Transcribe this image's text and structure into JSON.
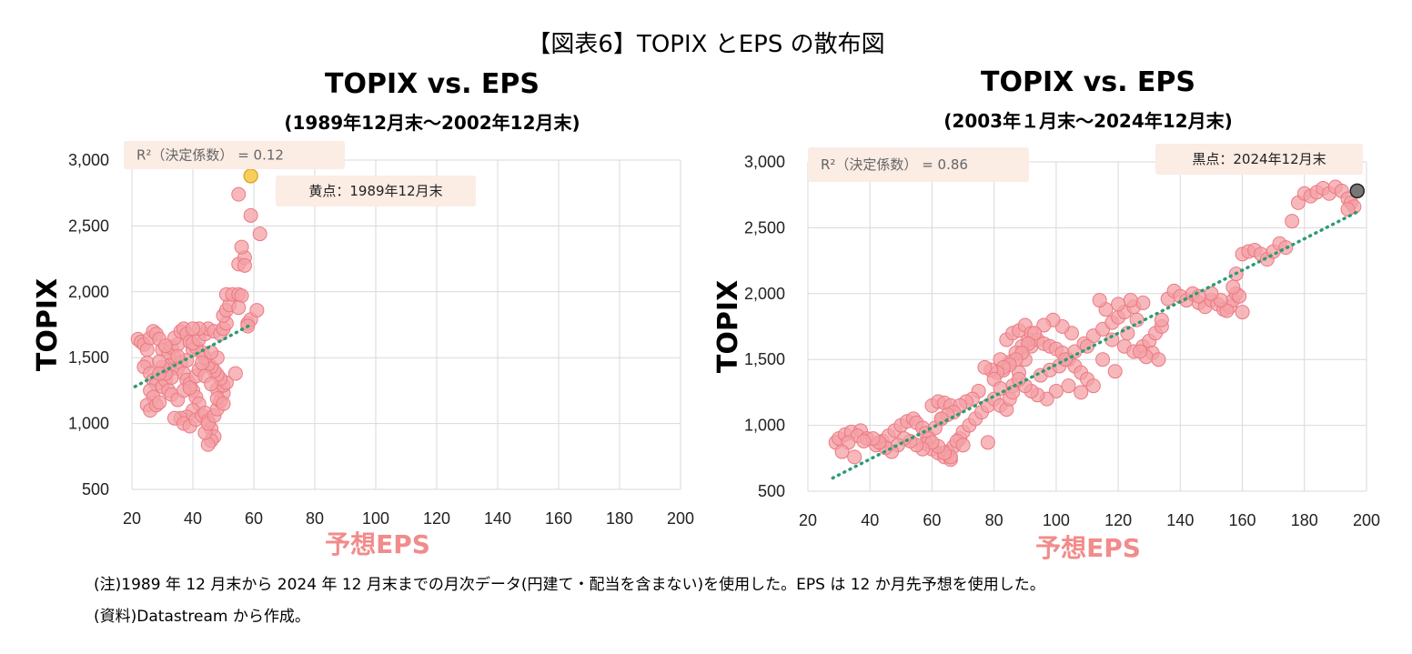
{
  "figure_title": "【図表6】TOPIX とEPS の散布図",
  "notes": [
    "(注)1989 年 12 月末から 2024 年 12 月末までの月次データ(円建て・配当を含まない)を使用した。EPS は 12 か月先予想を使用した。",
    "(資料)Datastream から作成。"
  ],
  "colors": {
    "points": "#f4a0a6",
    "points_edge": "#ea7a82",
    "trend": "#2e9b72",
    "highlight1": "#f6cf5a",
    "highlight2": "#777777",
    "callout_bg": "#fbece4"
  },
  "chart_data": [
    {
      "type": "scatter",
      "title": "TOPIX vs. EPS",
      "subtitle": "(1989年12月末～2002年12月末)",
      "xlabel": "予想EPS",
      "ylabel": "TOPIX",
      "xlim": [
        20,
        200
      ],
      "ylim": [
        500,
        3000
      ],
      "xticks": [
        "20",
        "40",
        "60",
        "80",
        "100",
        "120",
        "140",
        "160",
        "180",
        "200"
      ],
      "yticks": [
        "500",
        "1,000",
        "1,500",
        "2,000",
        "2,500",
        "3,000"
      ],
      "grid": true,
      "r2_label": "R²（決定係数） = 0.12",
      "highlight_label": "黄点：1989年12月末",
      "highlight": {
        "x": 59,
        "y": 2880
      },
      "trendline": {
        "x": [
          21,
          59
        ],
        "y": [
          1280,
          1750
        ]
      },
      "points": [
        [
          22,
          1640
        ],
        [
          23,
          1620
        ],
        [
          24,
          1600
        ],
        [
          25,
          1560
        ],
        [
          26,
          1650
        ],
        [
          27,
          1700
        ],
        [
          28,
          1680
        ],
        [
          29,
          1640
        ],
        [
          30,
          1560
        ],
        [
          25,
          1460
        ],
        [
          24,
          1430
        ],
        [
          26,
          1380
        ],
        [
          27,
          1330
        ],
        [
          28,
          1300
        ],
        [
          26,
          1250
        ],
        [
          27,
          1200
        ],
        [
          25,
          1140
        ],
        [
          26,
          1100
        ],
        [
          28,
          1140
        ],
        [
          29,
          1160
        ],
        [
          30,
          1280
        ],
        [
          31,
          1330
        ],
        [
          32,
          1400
        ],
        [
          33,
          1450
        ],
        [
          34,
          1500
        ],
        [
          32,
          1540
        ],
        [
          33,
          1580
        ],
        [
          35,
          1600
        ],
        [
          34,
          1650
        ],
        [
          36,
          1700
        ],
        [
          37,
          1720
        ],
        [
          38,
          1680
        ],
        [
          39,
          1620
        ],
        [
          40,
          1560
        ],
        [
          36,
          1460
        ],
        [
          35,
          1420
        ],
        [
          37,
          1380
        ],
        [
          38,
          1330
        ],
        [
          39,
          1300
        ],
        [
          40,
          1250
        ],
        [
          41,
          1200
        ],
        [
          42,
          1150
        ],
        [
          40,
          1100
        ],
        [
          38,
          1050
        ],
        [
          36,
          1040
        ],
        [
          34,
          1040
        ],
        [
          37,
          1000
        ],
        [
          39,
          980
        ],
        [
          41,
          1030
        ],
        [
          43,
          1060
        ],
        [
          44,
          1080
        ],
        [
          45,
          1020
        ],
        [
          46,
          960
        ],
        [
          47,
          900
        ],
        [
          46,
          870
        ],
        [
          45,
          840
        ],
        [
          44,
          930
        ],
        [
          45,
          1000
        ],
        [
          47,
          1060
        ],
        [
          48,
          1110
        ],
        [
          49,
          1170
        ],
        [
          50,
          1230
        ],
        [
          48,
          1260
        ],
        [
          50,
          1290
        ],
        [
          51,
          1310
        ],
        [
          49,
          1340
        ],
        [
          48,
          1370
        ],
        [
          47,
          1400
        ],
        [
          46,
          1430
        ],
        [
          45,
          1450
        ],
        [
          44,
          1500
        ],
        [
          43,
          1540
        ],
        [
          41,
          1580
        ],
        [
          40,
          1610
        ],
        [
          42,
          1640
        ],
        [
          44,
          1680
        ],
        [
          45,
          1720
        ],
        [
          47,
          1700
        ],
        [
          49,
          1680
        ],
        [
          50,
          1720
        ],
        [
          51,
          1760
        ],
        [
          50,
          1820
        ],
        [
          51,
          1860
        ],
        [
          52,
          1900
        ],
        [
          51,
          1980
        ],
        [
          53,
          1980
        ],
        [
          55,
          1980
        ],
        [
          56,
          1970
        ],
        [
          55,
          1880
        ],
        [
          58,
          1760
        ],
        [
          59,
          1790
        ],
        [
          58,
          1740
        ],
        [
          61,
          1860
        ],
        [
          54,
          1380
        ],
        [
          55,
          2210
        ],
        [
          57,
          2260
        ],
        [
          56,
          2340
        ],
        [
          57,
          2200
        ],
        [
          59,
          2580
        ],
        [
          62,
          2440
        ],
        [
          55,
          2740
        ],
        [
          33,
          1350
        ],
        [
          31,
          1380
        ],
        [
          30,
          1430
        ],
        [
          29,
          1470
        ],
        [
          32,
          1250
        ],
        [
          33,
          1220
        ],
        [
          35,
          1180
        ],
        [
          37,
          1250
        ],
        [
          39,
          1270
        ],
        [
          41,
          1360
        ],
        [
          42,
          1410
        ],
        [
          43,
          1460
        ],
        [
          44,
          1360
        ],
        [
          46,
          1300
        ],
        [
          48,
          1190
        ],
        [
          50,
          1150
        ],
        [
          48,
          1500
        ],
        [
          46,
          1540
        ],
        [
          42,
          1720
        ],
        [
          40,
          1720
        ],
        [
          38,
          1480
        ],
        [
          35,
          1510
        ],
        [
          31,
          1590
        ],
        [
          29,
          1380
        ]
      ]
    },
    {
      "type": "scatter",
      "title": "TOPIX vs. EPS",
      "subtitle": "(2003年１月末～2024年12月末)",
      "xlabel": "予想EPS",
      "ylabel": "TOPIX",
      "xlim": [
        20,
        200
      ],
      "ylim": [
        500,
        3000
      ],
      "xticks": [
        "20",
        "40",
        "60",
        "80",
        "100",
        "120",
        "140",
        "160",
        "180",
        "200"
      ],
      "yticks": [
        "500",
        "1,000",
        "1,500",
        "2,000",
        "2,500",
        "3,000"
      ],
      "grid": true,
      "r2_label": "R²（決定係数） = 0.86",
      "highlight_label": "黒点：2024年12月末",
      "highlight": {
        "x": 197,
        "y": 2780
      },
      "trendline": {
        "x": [
          28,
          197
        ],
        "y": [
          600,
          2620
        ]
      },
      "points": [
        [
          29,
          870
        ],
        [
          30,
          900
        ],
        [
          32,
          930
        ],
        [
          34,
          950
        ],
        [
          37,
          960
        ],
        [
          36,
          920
        ],
        [
          33,
          870
        ],
        [
          31,
          800
        ],
        [
          35,
          760
        ],
        [
          39,
          900
        ],
        [
          42,
          850
        ],
        [
          44,
          880
        ],
        [
          46,
          920
        ],
        [
          48,
          960
        ],
        [
          50,
          1000
        ],
        [
          52,
          1030
        ],
        [
          54,
          1050
        ],
        [
          55,
          1020
        ],
        [
          57,
          980
        ],
        [
          58,
          940
        ],
        [
          60,
          1150
        ],
        [
          62,
          1180
        ],
        [
          64,
          1170
        ],
        [
          66,
          1150
        ],
        [
          63,
          1050
        ],
        [
          61,
          980
        ],
        [
          59,
          900
        ],
        [
          58,
          860
        ],
        [
          60,
          820
        ],
        [
          62,
          790
        ],
        [
          64,
          760
        ],
        [
          66,
          740
        ],
        [
          65,
          800
        ],
        [
          67,
          840
        ],
        [
          69,
          900
        ],
        [
          70,
          950
        ],
        [
          72,
          1000
        ],
        [
          74,
          1050
        ],
        [
          76,
          1100
        ],
        [
          78,
          1150
        ],
        [
          80,
          1200
        ],
        [
          82,
          1150
        ],
        [
          84,
          1120
        ],
        [
          85,
          1200
        ],
        [
          86,
          1300
        ],
        [
          88,
          1400
        ],
        [
          90,
          1500
        ],
        [
          92,
          1600
        ],
        [
          91,
          1650
        ],
        [
          89,
          1600
        ],
        [
          87,
          1550
        ],
        [
          85,
          1480
        ],
        [
          83,
          1420
        ],
        [
          82,
          1500
        ],
        [
          84,
          1650
        ],
        [
          86,
          1700
        ],
        [
          88,
          1720
        ],
        [
          90,
          1760
        ],
        [
          92,
          1700
        ],
        [
          94,
          1650
        ],
        [
          96,
          1620
        ],
        [
          98,
          1600
        ],
        [
          100,
          1580
        ],
        [
          102,
          1550
        ],
        [
          104,
          1500
        ],
        [
          106,
          1450
        ],
        [
          108,
          1400
        ],
        [
          110,
          1350
        ],
        [
          112,
          1300
        ],
        [
          108,
          1250
        ],
        [
          104,
          1300
        ],
        [
          100,
          1260
        ],
        [
          97,
          1200
        ],
        [
          94,
          1230
        ],
        [
          92,
          1260
        ],
        [
          90,
          1300
        ],
        [
          88,
          1350
        ],
        [
          95,
          1380
        ],
        [
          98,
          1420
        ],
        [
          101,
          1450
        ],
        [
          103,
          1500
        ],
        [
          106,
          1560
        ],
        [
          109,
          1620
        ],
        [
          112,
          1680
        ],
        [
          115,
          1730
        ],
        [
          118,
          1780
        ],
        [
          120,
          1820
        ],
        [
          122,
          1860
        ],
        [
          125,
          1900
        ],
        [
          128,
          1930
        ],
        [
          124,
          1950
        ],
        [
          120,
          1920
        ],
        [
          116,
          1880
        ],
        [
          114,
          1950
        ],
        [
          118,
          1650
        ],
        [
          122,
          1600
        ],
        [
          125,
          1560
        ],
        [
          128,
          1600
        ],
        [
          130,
          1640
        ],
        [
          132,
          1700
        ],
        [
          134,
          1750
        ],
        [
          131,
          1550
        ],
        [
          129,
          1520
        ],
        [
          127,
          1560
        ],
        [
          133,
          1500
        ],
        [
          126,
          1800
        ],
        [
          123,
          1700
        ],
        [
          119,
          1410
        ],
        [
          115,
          1500
        ],
        [
          110,
          1600
        ],
        [
          105,
          1700
        ],
        [
          102,
          1750
        ],
        [
          99,
          1800
        ],
        [
          96,
          1760
        ],
        [
          93,
          1700
        ],
        [
          91,
          1620
        ],
        [
          89,
          1550
        ],
        [
          87,
          1500
        ],
        [
          85,
          1460
        ],
        [
          83,
          1440
        ],
        [
          81,
          1400
        ],
        [
          79,
          1420
        ],
        [
          77,
          1440
        ],
        [
          75,
          1260
        ],
        [
          73,
          1200
        ],
        [
          71,
          1180
        ],
        [
          69,
          1150
        ],
        [
          67,
          1100
        ],
        [
          65,
          1080
        ],
        [
          63,
          1050
        ],
        [
          68,
          880
        ],
        [
          70,
          850
        ],
        [
          66,
          760
        ],
        [
          64,
          790
        ],
        [
          62,
          840
        ],
        [
          60,
          870
        ],
        [
          57,
          820
        ],
        [
          55,
          850
        ],
        [
          53,
          880
        ],
        [
          51,
          900
        ],
        [
          49,
          850
        ],
        [
          47,
          800
        ],
        [
          45,
          830
        ],
        [
          43,
          870
        ],
        [
          41,
          900
        ],
        [
          38,
          880
        ],
        [
          78,
          870
        ],
        [
          80,
          1350
        ],
        [
          82,
          1280
        ],
        [
          86,
          1250
        ],
        [
          134,
          1800
        ],
        [
          136,
          1960
        ],
        [
          138,
          2020
        ],
        [
          140,
          1980
        ],
        [
          142,
          1950
        ],
        [
          144,
          2000
        ],
        [
          146,
          1930
        ],
        [
          148,
          1900
        ],
        [
          150,
          1950
        ],
        [
          152,
          1920
        ],
        [
          154,
          1880
        ],
        [
          156,
          1900
        ],
        [
          157,
          1950
        ],
        [
          158,
          2000
        ],
        [
          159,
          1980
        ],
        [
          160,
          1860
        ],
        [
          157,
          2050
        ],
        [
          158,
          2150
        ],
        [
          160,
          2300
        ],
        [
          162,
          2320
        ],
        [
          164,
          2330
        ],
        [
          166,
          2300
        ],
        [
          168,
          2260
        ],
        [
          170,
          2320
        ],
        [
          172,
          2380
        ],
        [
          174,
          2350
        ],
        [
          176,
          2550
        ],
        [
          178,
          2690
        ],
        [
          180,
          2760
        ],
        [
          182,
          2740
        ],
        [
          184,
          2770
        ],
        [
          186,
          2800
        ],
        [
          188,
          2760
        ],
        [
          190,
          2810
        ],
        [
          192,
          2780
        ],
        [
          194,
          2720
        ],
        [
          195,
          2690
        ],
        [
          196,
          2660
        ],
        [
          194,
          2640
        ],
        [
          155,
          1870
        ],
        [
          153,
          1950
        ],
        [
          150,
          2000
        ],
        [
          146,
          1980
        ]
      ]
    }
  ]
}
